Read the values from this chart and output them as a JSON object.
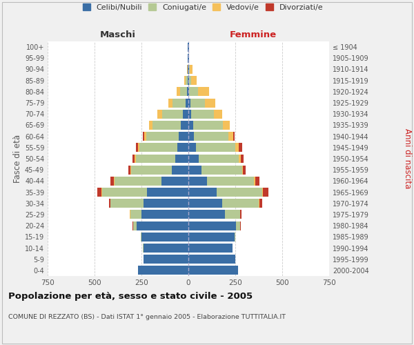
{
  "age_groups": [
    "0-4",
    "5-9",
    "10-14",
    "15-19",
    "20-24",
    "25-29",
    "30-34",
    "35-39",
    "40-44",
    "45-49",
    "50-54",
    "55-59",
    "60-64",
    "65-69",
    "70-74",
    "75-79",
    "80-84",
    "85-89",
    "90-94",
    "95-99",
    "100+"
  ],
  "birth_years": [
    "2000-2004",
    "1995-1999",
    "1990-1994",
    "1985-1989",
    "1980-1984",
    "1975-1979",
    "1970-1974",
    "1965-1969",
    "1960-1964",
    "1955-1959",
    "1950-1954",
    "1945-1949",
    "1940-1944",
    "1935-1939",
    "1930-1934",
    "1925-1929",
    "1920-1924",
    "1915-1919",
    "1910-1914",
    "1905-1909",
    "≤ 1904"
  ],
  "maschi": {
    "celibi": [
      270,
      240,
      240,
      250,
      275,
      250,
      240,
      220,
      145,
      90,
      70,
      60,
      50,
      40,
      30,
      15,
      8,
      5,
      3,
      2,
      2
    ],
    "coniugati": [
      0,
      0,
      2,
      5,
      18,
      60,
      175,
      240,
      250,
      215,
      210,
      200,
      175,
      150,
      110,
      70,
      35,
      8,
      2,
      0,
      0
    ],
    "vedovi": [
      0,
      0,
      0,
      0,
      2,
      2,
      2,
      2,
      2,
      3,
      5,
      8,
      12,
      20,
      25,
      20,
      20,
      8,
      2,
      0,
      0
    ],
    "divorziati": [
      0,
      0,
      0,
      0,
      2,
      2,
      5,
      25,
      18,
      12,
      12,
      12,
      5,
      0,
      0,
      0,
      0,
      0,
      0,
      0,
      0
    ]
  },
  "femmine": {
    "nubili": [
      265,
      250,
      235,
      245,
      255,
      195,
      180,
      150,
      100,
      70,
      55,
      40,
      30,
      25,
      15,
      10,
      5,
      5,
      3,
      2,
      2
    ],
    "coniugate": [
      0,
      0,
      2,
      5,
      20,
      80,
      195,
      245,
      250,
      215,
      215,
      210,
      185,
      160,
      120,
      80,
      45,
      10,
      3,
      0,
      0
    ],
    "vedove": [
      0,
      0,
      0,
      0,
      2,
      2,
      2,
      2,
      5,
      5,
      10,
      20,
      25,
      35,
      45,
      55,
      60,
      30,
      15,
      2,
      0
    ],
    "divorziate": [
      0,
      0,
      0,
      0,
      3,
      5,
      18,
      30,
      22,
      15,
      15,
      15,
      5,
      2,
      0,
      0,
      0,
      0,
      0,
      0,
      0
    ]
  },
  "colors": {
    "celibi": "#3a6ea5",
    "coniugati": "#b5c994",
    "vedovi": "#f5c05a",
    "divorziati": "#c0392b"
  },
  "xlim": 750,
  "title": "Popolazione per età, sesso e stato civile - 2005",
  "subtitle": "COMUNE DI REZZATO (BS) - Dati ISTAT 1° gennaio 2005 - Elaborazione TUTTITALIA.IT",
  "ylabel_left": "Fasce di età",
  "ylabel_right": "Anni di nascita",
  "xlabel_left": "Maschi",
  "xlabel_right": "Femmine",
  "bg_color": "#f0f0f0",
  "plot_bg": "#ffffff",
  "grid_color": "#cccccc"
}
